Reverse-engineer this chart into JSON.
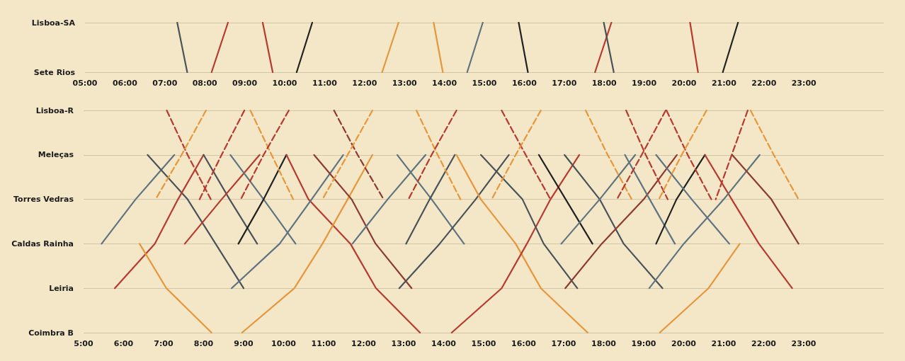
{
  "chart_data": [
    {
      "type": "line",
      "orientation": "horizontal",
      "marker": "none",
      "grid": "y",
      "xlim": [
        5,
        25
      ],
      "xticks": [
        {
          "value": 5,
          "label": "05:00"
        },
        {
          "value": 6,
          "label": "06:00"
        },
        {
          "value": 7,
          "label": "07:00"
        },
        {
          "value": 8,
          "label": "08:00"
        },
        {
          "value": 9,
          "label": "09:00"
        },
        {
          "value": 10,
          "label": "10:00"
        },
        {
          "value": 11,
          "label": "11:00"
        },
        {
          "value": 12,
          "label": "12:00"
        },
        {
          "value": 13,
          "label": "13:00"
        },
        {
          "value": 14,
          "label": "14:00"
        },
        {
          "value": 15,
          "label": "15:00"
        },
        {
          "value": 16,
          "label": "16:00"
        },
        {
          "value": 17,
          "label": "17:00"
        },
        {
          "value": 18,
          "label": "18:00"
        },
        {
          "value": 19,
          "label": "19:00"
        },
        {
          "value": 20,
          "label": "20:00"
        },
        {
          "value": 21,
          "label": "21:00"
        },
        {
          "value": 22,
          "label": "22:00"
        },
        {
          "value": 23,
          "label": "23:00"
        }
      ],
      "categories": [
        "Lisboa-SA",
        "Sete Rios"
      ],
      "series": [
        {
          "color": "#4a5358",
          "values": [
            7.31,
            7.56
          ]
        },
        {
          "color": "#b83a2e",
          "values": [
            8.58,
            8.17
          ]
        },
        {
          "color": "#b83a2e",
          "values": [
            9.45,
            9.7
          ]
        },
        {
          "color": "#222222",
          "values": [
            10.69,
            10.3
          ]
        },
        {
          "color": "#e8963a",
          "values": [
            12.85,
            12.44
          ]
        },
        {
          "color": "#e8963a",
          "values": [
            13.73,
            13.96
          ]
        },
        {
          "color": "#5f7480",
          "values": [
            14.96,
            14.57
          ]
        },
        {
          "color": "#222222",
          "values": [
            15.86,
            16.09
          ]
        },
        {
          "color": "#b83a2e",
          "values": [
            18.18,
            17.77
          ]
        },
        {
          "color": "#4a5358",
          "values": [
            17.99,
            18.24
          ]
        },
        {
          "color": "#b83a2e",
          "values": [
            20.15,
            20.35
          ]
        },
        {
          "color": "#222222",
          "values": [
            21.35,
            20.97
          ]
        }
      ]
    },
    {
      "type": "line",
      "orientation": "horizontal",
      "marker": "none",
      "grid": "y",
      "xlim": [
        5,
        25
      ],
      "xticks": [
        {
          "value": 5,
          "label": "5:00"
        },
        {
          "value": 6,
          "label": "6:00"
        },
        {
          "value": 7,
          "label": "7:00"
        },
        {
          "value": 8,
          "label": "8:00"
        },
        {
          "value": 9,
          "label": "9:00"
        },
        {
          "value": 10,
          "label": "10:00"
        },
        {
          "value": 11,
          "label": "11:00"
        },
        {
          "value": 12,
          "label": "12:00"
        },
        {
          "value": 13,
          "label": "13:00"
        },
        {
          "value": 14,
          "label": "14:00"
        },
        {
          "value": 15,
          "label": "15:00"
        },
        {
          "value": 16,
          "label": "16:00"
        },
        {
          "value": 17,
          "label": "17:00"
        },
        {
          "value": 18,
          "label": "18:00"
        },
        {
          "value": 19,
          "label": "19:00"
        },
        {
          "value": 20,
          "label": "20:00"
        },
        {
          "value": 21,
          "label": "21:00"
        },
        {
          "value": 22,
          "label": "22:00"
        },
        {
          "value": 23,
          "label": "23:00"
        }
      ],
      "categories": [
        "Lisboa-R",
        "Meleças",
        "Torres Vedras",
        "Caldas Rainha",
        "Leiria",
        "Coimbra B"
      ],
      "series": [
        {
          "color": "#5f7480",
          "values": [
            null,
            7.27,
            6.3,
            5.45,
            null,
            null
          ]
        },
        {
          "color": "#4a5358",
          "values": [
            null,
            6.6,
            7.6,
            8.3,
            9.0,
            null
          ]
        },
        {
          "color": "#b83a2e",
          "values": [
            null,
            8.0,
            7.36,
            6.78,
            5.78,
            null
          ]
        },
        {
          "color": "#4a5358",
          "values": [
            null,
            8.0,
            8.65,
            9.34,
            null,
            null
          ]
        },
        {
          "color": "#b83a2e",
          "values": [
            null,
            9.4,
            8.45,
            7.53,
            null,
            null
          ]
        },
        {
          "color": "#5f7480",
          "values": [
            null,
            8.67,
            9.5,
            10.3,
            null,
            null
          ]
        },
        {
          "color": "#222222",
          "values": [
            null,
            10.07,
            9.5,
            8.87,
            null,
            null
          ]
        },
        {
          "color": "#b83a2e",
          "values": [
            null,
            10.07,
            10.62,
            11.67,
            12.31,
            13.41
          ]
        },
        {
          "color": "#5f7480",
          "values": [
            null,
            11.49,
            10.7,
            9.9,
            8.7,
            null
          ]
        },
        {
          "color": "#e8963a",
          "values": [
            null,
            null,
            null,
            6.4,
            7.07,
            8.2
          ]
        },
        {
          "color": "#e8963a",
          "values": [
            null,
            12.22,
            11.6,
            10.97,
            10.27,
            8.96
          ]
        },
        {
          "color": "#8e3a30",
          "values": [
            null,
            10.76,
            11.7,
            12.3,
            13.2,
            null
          ]
        },
        {
          "color": "#5f7480",
          "values": [
            null,
            13.55,
            12.6,
            11.72,
            null,
            null
          ]
        },
        {
          "color": "#5f7480",
          "values": [
            null,
            12.84,
            13.7,
            14.51,
            null,
            null
          ]
        },
        {
          "color": "#4a5358",
          "values": [
            null,
            14.28,
            13.65,
            13.06,
            null,
            null
          ]
        },
        {
          "color": "#4a5358",
          "values": [
            null,
            15.63,
            14.8,
            13.9,
            12.89,
            null
          ]
        },
        {
          "color": "#e8963a",
          "values": [
            null,
            14.32,
            14.93,
            15.8,
            16.43,
            17.6
          ]
        },
        {
          "color": "#b83a2e",
          "values": [
            null,
            17.39,
            16.67,
            16.08,
            15.45,
            14.2
          ]
        },
        {
          "color": "#4a5358",
          "values": [
            null,
            14.93,
            15.97,
            16.5,
            17.34,
            null
          ]
        },
        {
          "color": "#222222",
          "values": [
            null,
            16.38,
            17.05,
            17.72,
            null,
            null
          ]
        },
        {
          "color": "#4a5358",
          "values": [
            null,
            17.02,
            17.9,
            18.5,
            19.47,
            null
          ]
        },
        {
          "color": "#5f7480",
          "values": [
            null,
            18.79,
            17.9,
            16.94,
            null,
            null
          ]
        },
        {
          "color": "#8e3a30",
          "values": [
            null,
            19.83,
            19.0,
            17.95,
            17.04,
            null
          ]
        },
        {
          "color": "#5f7480",
          "values": [
            null,
            18.53,
            19.15,
            19.78,
            null,
            null
          ]
        },
        {
          "color": "#222222",
          "values": [
            null,
            20.53,
            19.82,
            19.31,
            null,
            null
          ]
        },
        {
          "color": "#b83a2e",
          "values": [
            null,
            20.53,
            21.2,
            21.88,
            22.71,
            null
          ]
        },
        {
          "color": "#5f7480",
          "values": [
            null,
            19.31,
            20.2,
            21.14,
            null,
            null
          ]
        },
        {
          "color": "#5f7480",
          "values": [
            null,
            21.9,
            21.0,
            20.0,
            19.14,
            null
          ]
        },
        {
          "color": "#8e3a30",
          "values": [
            null,
            21.21,
            22.19,
            22.87,
            null,
            null
          ]
        },
        {
          "color": "#e8963a",
          "values": [
            null,
            null,
            null,
            21.4,
            20.62,
            19.4
          ]
        },
        {
          "color": "#b83a2e",
          "line_style": "dashed",
          "values": [
            7.08,
            7.6,
            8.18,
            null,
            null,
            null
          ]
        },
        {
          "color": "#e8963a",
          "line_style": "dashed",
          "values": [
            8.06,
            7.45,
            6.8,
            null,
            null,
            null
          ]
        },
        {
          "color": "#b83a2e",
          "line_style": "dashed",
          "values": [
            9.02,
            8.45,
            7.9,
            null,
            null,
            null
          ]
        },
        {
          "color": "#e8963a",
          "line_style": "dashed",
          "values": [
            9.17,
            9.7,
            10.24,
            null,
            null,
            null
          ]
        },
        {
          "color": "#b83a2e",
          "line_style": "dashed",
          "values": [
            10.13,
            9.5,
            8.93,
            null,
            null,
            null
          ]
        },
        {
          "color": "#8e3a30",
          "line_style": "dashed",
          "values": [
            11.26,
            11.85,
            12.5,
            null,
            null,
            null
          ]
        },
        {
          "color": "#e8963a",
          "line_style": "dashed",
          "values": [
            12.22,
            11.6,
            10.97,
            null,
            null,
            null
          ]
        },
        {
          "color": "#e8963a",
          "line_style": "dashed",
          "values": [
            13.32,
            13.85,
            14.42,
            null,
            null,
            null
          ]
        },
        {
          "color": "#b83a2e",
          "line_style": "dashed",
          "values": [
            14.32,
            13.7,
            13.12,
            null,
            null,
            null
          ]
        },
        {
          "color": "#b83a2e",
          "line_style": "dashed",
          "values": [
            15.45,
            16.05,
            16.67,
            null,
            null,
            null
          ]
        },
        {
          "color": "#e8963a",
          "line_style": "dashed",
          "values": [
            16.43,
            15.8,
            15.2,
            null,
            null,
            null
          ]
        },
        {
          "color": "#e8963a",
          "line_style": "dashed",
          "values": [
            17.55,
            18.1,
            18.7,
            null,
            null,
            null
          ]
        },
        {
          "color": "#b83a2e",
          "line_style": "dashed",
          "values": [
            18.56,
            19.05,
            19.6,
            null,
            null,
            null
          ]
        },
        {
          "color": "#b83a2e",
          "line_style": "dashed",
          "values": [
            19.55,
            18.95,
            18.33,
            null,
            null,
            null
          ]
        },
        {
          "color": "#b83a2e",
          "line_style": "dashed",
          "values": [
            19.57,
            20.1,
            20.69,
            null,
            null,
            null
          ]
        },
        {
          "color": "#e8963a",
          "line_style": "dashed",
          "values": [
            20.57,
            19.95,
            19.38,
            null,
            null,
            null
          ]
        },
        {
          "color": "#b83a2e",
          "line_style": "dashed",
          "values": [
            21.6,
            21.2,
            20.8,
            null,
            null,
            null
          ]
        },
        {
          "color": "#e8963a",
          "line_style": "dashed",
          "values": [
            21.67,
            22.25,
            22.87,
            null,
            null,
            null
          ]
        }
      ]
    }
  ]
}
